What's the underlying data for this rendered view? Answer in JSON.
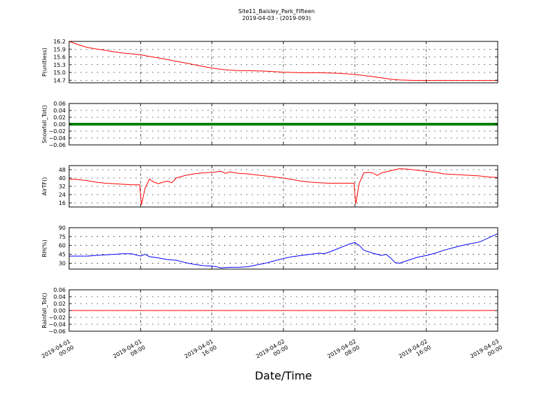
{
  "figure": {
    "title": "Site11_Baisley_Park_Fifteen",
    "subtitle": "2019-04-03 - (2019-093)",
    "xlabel": "Date/Time",
    "xticks": [
      {
        "l1": "2019-04-01",
        "l2": "00:00"
      },
      {
        "l1": "2019-04-01",
        "l2": "08:00"
      },
      {
        "l1": "2019-04-01",
        "l2": "16:00"
      },
      {
        "l1": "2019-04-02",
        "l2": "00:00"
      },
      {
        "l1": "2019-04-02",
        "l2": "08:00"
      },
      {
        "l1": "2019-04-02",
        "l2": "16:00"
      },
      {
        "l1": "2019-04-03",
        "l2": "00:00"
      }
    ]
  },
  "chart_data": [
    {
      "type": "line",
      "ylabel": "P(unitless)",
      "color": "#ff0000",
      "ylim": [
        14.6,
        16.2
      ],
      "yticks": [
        "16.2",
        "15.9",
        "15.6",
        "15.3",
        "15.0",
        "14.7"
      ],
      "xlim": [
        0,
        48
      ],
      "x": [
        0,
        1,
        2,
        3,
        4,
        5,
        6,
        7,
        8,
        9,
        10,
        11,
        12,
        13,
        14,
        15,
        16,
        17,
        18,
        19,
        20,
        21,
        22,
        23,
        24,
        25,
        26,
        27,
        28,
        29,
        30,
        31,
        32,
        33,
        34,
        35,
        36,
        37,
        38,
        39,
        40,
        41,
        42,
        43,
        44,
        45,
        46,
        47,
        48
      ],
      "y": [
        16.2,
        16.08,
        15.97,
        15.91,
        15.86,
        15.8,
        15.75,
        15.72,
        15.68,
        15.62,
        15.56,
        15.5,
        15.43,
        15.37,
        15.3,
        15.23,
        15.17,
        15.12,
        15.09,
        15.07,
        15.07,
        15.06,
        15.05,
        15.03,
        15.01,
        15.0,
        14.99,
        14.99,
        14.99,
        14.98,
        14.97,
        14.95,
        14.92,
        14.88,
        14.84,
        14.79,
        14.74,
        14.71,
        14.7,
        14.69,
        14.69,
        14.69,
        14.69,
        14.69,
        14.69,
        14.69,
        14.69,
        14.69,
        14.69
      ]
    },
    {
      "type": "line",
      "ylabel": "Snowfall_Tot()",
      "color": "#008000",
      "ylim": [
        -0.06,
        0.06
      ],
      "yticks": [
        "0.06",
        "0.04",
        "0.02",
        "0.00",
        "−0.02",
        "−0.04",
        "−0.06"
      ],
      "xlim": [
        0,
        48
      ],
      "x": [
        0,
        48
      ],
      "y": [
        0,
        0
      ]
    },
    {
      "type": "line",
      "ylabel": "AirTF()",
      "color": "#ff0000",
      "ylim": [
        12,
        52
      ],
      "yticks": [
        "48",
        "40",
        "32",
        "24",
        "16"
      ],
      "xlim": [
        0,
        48
      ],
      "x": [
        0,
        1,
        2,
        3,
        4,
        5,
        6,
        7,
        7.5,
        7.9,
        8.1,
        8.5,
        9,
        9.5,
        10,
        10.5,
        11,
        11.5,
        12,
        13,
        14,
        15,
        16,
        17,
        17.5,
        18,
        19,
        20,
        21,
        22,
        23,
        24,
        25,
        26,
        27,
        28,
        29,
        30,
        31,
        31.5,
        31.9,
        32.1,
        32.5,
        33,
        33.5,
        34,
        34.5,
        35,
        36,
        37,
        38,
        39,
        40,
        41,
        42,
        43,
        44,
        45,
        46,
        47,
        48
      ],
      "y": [
        39,
        38.5,
        37.5,
        36,
        35,
        34.5,
        34,
        33.5,
        33.5,
        33.5,
        14,
        30,
        39,
        36,
        34.5,
        36,
        37,
        35.5,
        40,
        42.5,
        44,
        45,
        45.5,
        46.5,
        44.5,
        46,
        44.5,
        44,
        43,
        42,
        41,
        40,
        38.5,
        37,
        36,
        35.5,
        35,
        35,
        35,
        35,
        35,
        15,
        35,
        45,
        45.5,
        45,
        42.5,
        45,
        47,
        49,
        48.5,
        47.5,
        46.5,
        45.5,
        44,
        43.5,
        43,
        42.5,
        42,
        41,
        40.5
      ]
    },
    {
      "type": "line",
      "ylabel": "RH(%)",
      "color": "#0000ff",
      "ylim": [
        20,
        90
      ],
      "yticks": [
        "90",
        "75",
        "60",
        "45",
        "30"
      ],
      "xlim": [
        0,
        48
      ],
      "x": [
        0,
        1,
        2,
        3,
        4,
        5,
        6,
        7,
        7.5,
        8,
        8.5,
        9,
        10,
        11,
        12,
        13,
        14,
        15,
        16,
        16.5,
        17,
        18,
        19,
        20,
        21,
        22,
        23,
        24,
        25,
        26,
        27,
        28,
        28.5,
        29,
        30,
        31,
        31.5,
        32,
        32.5,
        33,
        34,
        35,
        35.5,
        36,
        36.5,
        37,
        38,
        39,
        40,
        41,
        42,
        43,
        44,
        45,
        46,
        47,
        48
      ],
      "y": [
        42,
        42,
        42,
        43,
        44,
        45,
        46,
        46,
        44,
        42,
        45,
        41,
        39,
        36,
        35,
        31,
        28,
        26,
        25,
        24,
        22,
        23,
        23,
        24,
        27,
        30,
        34,
        38,
        41,
        43,
        45,
        47,
        46,
        48,
        54,
        60,
        63,
        65,
        60,
        52,
        47,
        43,
        45,
        39,
        31,
        30,
        35,
        40,
        43,
        47,
        52,
        56,
        60,
        63,
        66,
        73,
        80
      ]
    },
    {
      "type": "line",
      "ylabel": "Rainfall_Tot()",
      "color": "#ff0000",
      "ylim": [
        -0.06,
        0.06
      ],
      "yticks": [
        "0.06",
        "0.04",
        "0.02",
        "0.00",
        "−0.02",
        "−0.04",
        "−0.06"
      ],
      "xlim": [
        0,
        48
      ],
      "x": [
        0,
        48
      ],
      "y": [
        0,
        0
      ]
    }
  ]
}
